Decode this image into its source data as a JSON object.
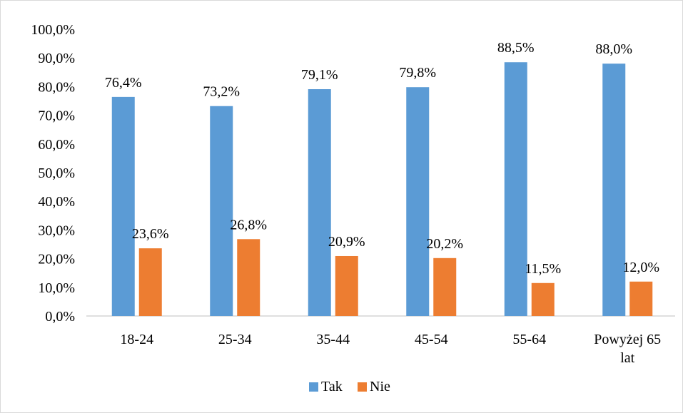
{
  "chart_data": {
    "type": "bar",
    "title": "",
    "categories": [
      "18-24",
      "25-34",
      "35-44",
      "45-54",
      "55-64",
      "Powyżej 65 lat"
    ],
    "series": [
      {
        "name": "Tak",
        "color": "#5b9bd5",
        "values": [
          76.4,
          73.2,
          79.1,
          79.8,
          88.5,
          88.0
        ],
        "labels": [
          "76,4%",
          "73,2%",
          "79,1%",
          "79,8%",
          "88,5%",
          "88,0%"
        ]
      },
      {
        "name": "Nie",
        "color": "#ed7d31",
        "values": [
          23.6,
          26.8,
          20.9,
          20.2,
          11.5,
          12.0
        ],
        "labels": [
          "23,6%",
          "26,8%",
          "20,9%",
          "20,2%",
          "11,5%",
          "12,0%"
        ]
      }
    ],
    "ylim": [
      0,
      100
    ],
    "yticks": [
      "0,0%",
      "10,0%",
      "20,0%",
      "30,0%",
      "40,0%",
      "50,0%",
      "60,0%",
      "70,0%",
      "80,0%",
      "90,0%",
      "100,0%"
    ],
    "xlabel": "",
    "ylabel": "",
    "grid": false,
    "legend_position": "bottom"
  }
}
